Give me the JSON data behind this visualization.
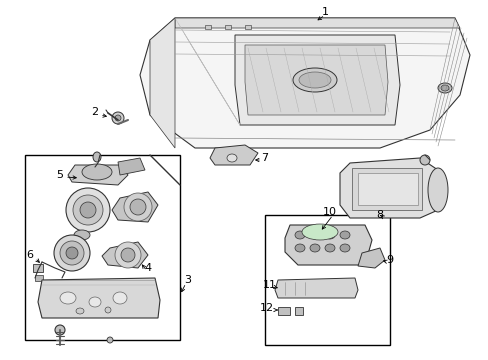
{
  "background_color": "#ffffff",
  "line_color": "#000000",
  "text_color": "#000000",
  "fig_width": 4.89,
  "fig_height": 3.6,
  "dpi": 100,
  "draw_color": "#333333",
  "light_gray": "#aaaaaa",
  "mid_gray": "#777777"
}
